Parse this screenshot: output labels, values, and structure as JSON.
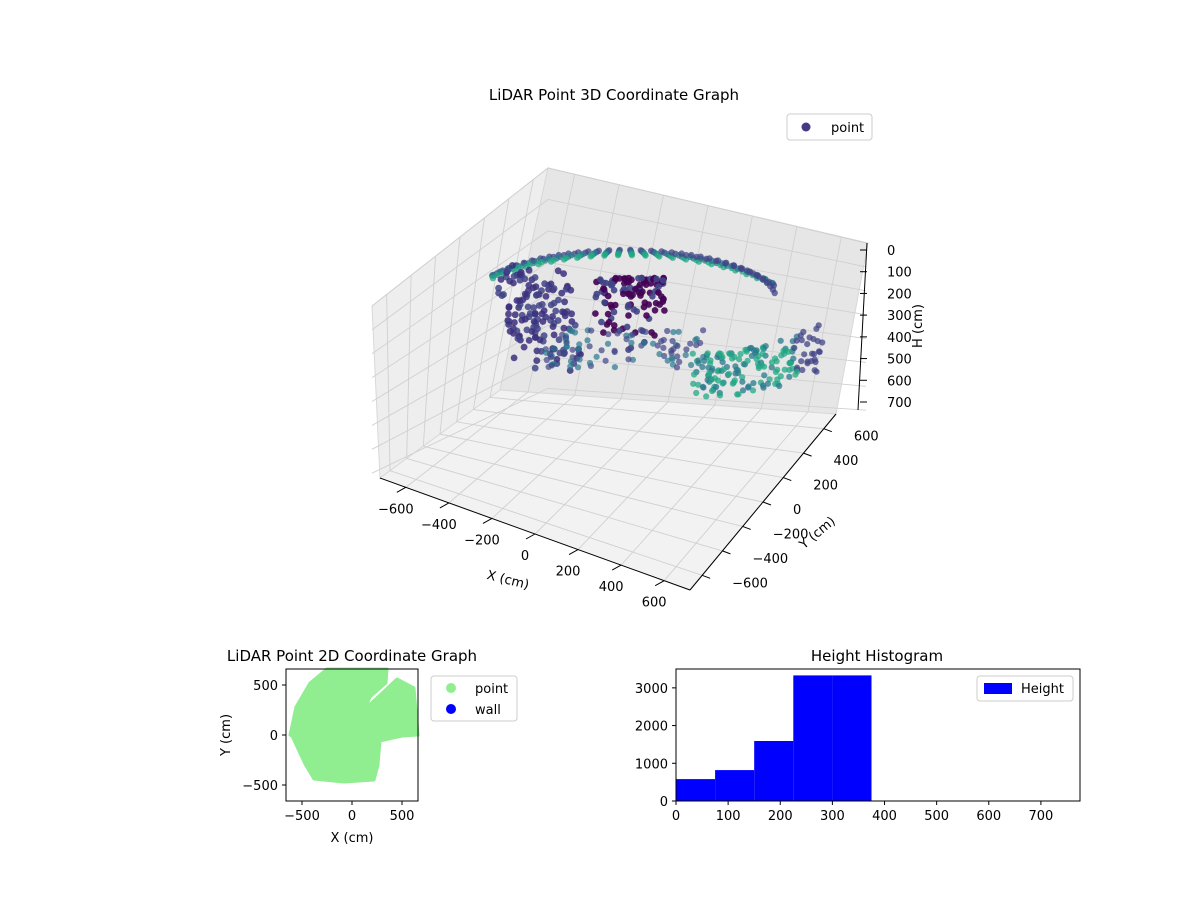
{
  "chart_data": [
    {
      "type": "scatter3d",
      "title": "LiDAR Point 3D Coordinate Graph",
      "xlabel": "X (cm)",
      "ylabel": "Y (cm)",
      "zlabel": "H (cm)",
      "xticks": [
        "−600",
        "−400",
        "−200",
        "0",
        "200",
        "400",
        "600"
      ],
      "yticks": [
        "−600",
        "−400",
        "−200",
        "0",
        "200",
        "400",
        "600"
      ],
      "zticks": [
        "0",
        "100",
        "200",
        "300",
        "400",
        "500",
        "600",
        "700"
      ],
      "xlim": [
        -650,
        650
      ],
      "ylim": [
        -650,
        650
      ],
      "zlim": [
        750,
        0
      ],
      "legend": [
        {
          "label": "point",
          "color": "#443983"
        }
      ],
      "legend_position": "upper-right",
      "colormap": [
        "#440154",
        "#414487",
        "#2a788e",
        "#22a884"
      ],
      "grid": true
    },
    {
      "type": "scatter",
      "title": "LiDAR Point 2D Coordinate Graph",
      "xlabel": "X (cm)",
      "ylabel": "Y (cm)",
      "xticks": [
        "−500",
        "0",
        "500"
      ],
      "yticks": [
        "−500",
        "0",
        "500"
      ],
      "xlim": [
        -660,
        660
      ],
      "ylim": [
        -660,
        660
      ],
      "series": [
        {
          "name": "point",
          "color": "#90ee90"
        },
        {
          "name": "wall",
          "color": "#0000ff"
        }
      ],
      "legend_position": "outside-right"
    },
    {
      "type": "bar",
      "title": "Height Histogram",
      "xticks": [
        "0",
        "100",
        "200",
        "300",
        "400",
        "500",
        "600",
        "700"
      ],
      "yticks": [
        "0",
        "1000",
        "2000",
        "3000"
      ],
      "xlim": [
        0,
        775
      ],
      "ylim": [
        0,
        3500
      ],
      "bins": [
        {
          "x0": 0,
          "x1": 75,
          "count": 580
        },
        {
          "x0": 75,
          "x1": 150,
          "count": 820
        },
        {
          "x0": 150,
          "x1": 225,
          "count": 1590
        },
        {
          "x0": 225,
          "x1": 300,
          "count": 3330
        },
        {
          "x0": 300,
          "x1": 375,
          "count": 3330
        }
      ],
      "series": [
        {
          "name": "Height",
          "color": "#0000ff"
        }
      ],
      "legend_position": "upper-right"
    }
  ]
}
